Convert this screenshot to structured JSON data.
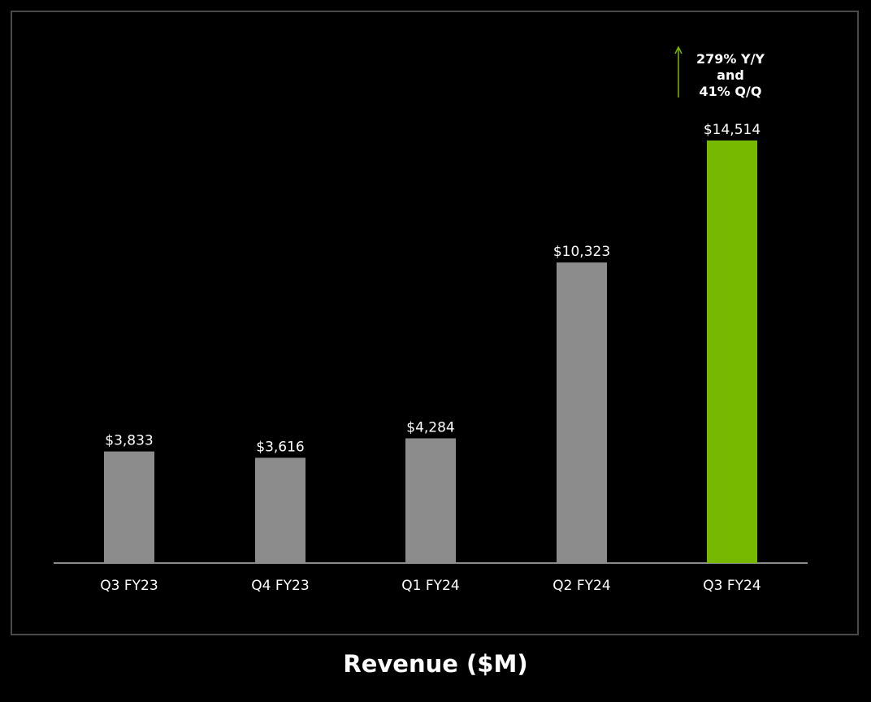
{
  "chart_data": {
    "type": "bar",
    "title": "Revenue ($M)",
    "categories": [
      "Q3 FY23",
      "Q4 FY23",
      "Q1 FY24",
      "Q2 FY24",
      "Q3 FY24"
    ],
    "values": [
      3833,
      3616,
      4284,
      10323,
      14514
    ],
    "value_labels": [
      "$3,833",
      "$3,616",
      "$4,284",
      "$10,323",
      "$14,514"
    ],
    "bar_colors": [
      "#8c8c8c",
      "#8c8c8c",
      "#8c8c8c",
      "#8c8c8c",
      "#76b900"
    ],
    "ylim": [
      0,
      18500
    ],
    "grid": false,
    "legend": "none",
    "xlabel": "",
    "ylabel": "",
    "annotation": {
      "icon": "arrow-up-icon",
      "color": "#76b900",
      "lines": [
        "279% Y/Y",
        "and",
        "41% Q/Q"
      ]
    }
  }
}
